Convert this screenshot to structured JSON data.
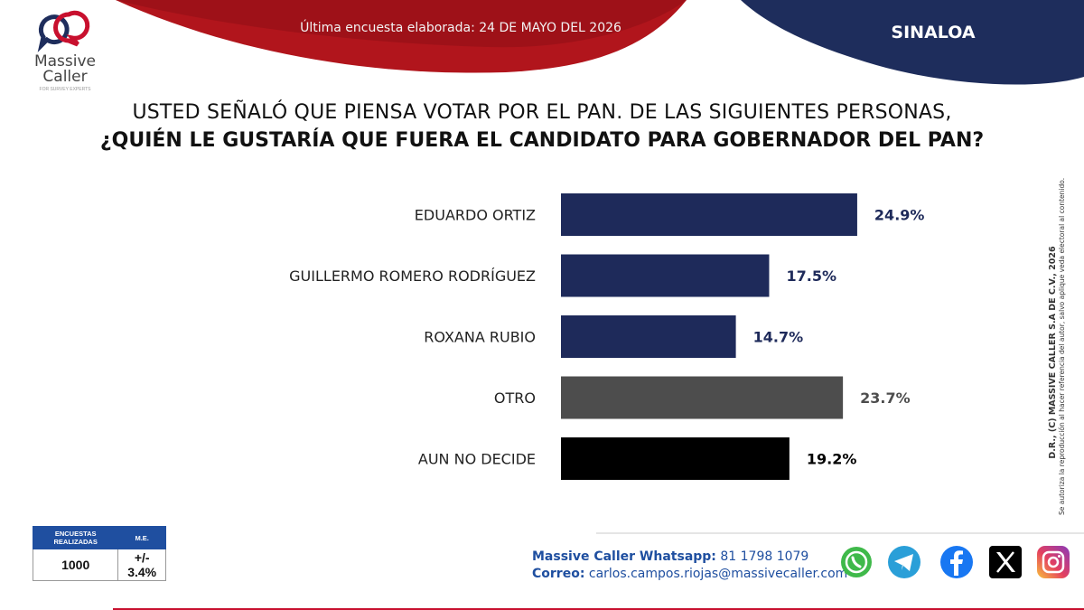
{
  "header": {
    "survey_date": "Última encuesta elaborada: 24 DE MAYO DEL 2026",
    "state": "SINALOA",
    "colors": {
      "red": "#b1151c",
      "navy": "#1e2d5c"
    }
  },
  "logo": {
    "name_line1": "Massive",
    "name_line2": "Caller",
    "tagline": "FOR SURVEY EXPERTS"
  },
  "question": {
    "line1": "USTED SEÑALÓ QUE PIENSA VOTAR POR EL PAN. DE LAS SIGUIENTES PERSONAS,",
    "line2": "¿QUIÉN LE GUSTARÍA QUE FUERA EL CANDIDATO PARA GOBERNADOR DEL PAN?"
  },
  "chart_data": {
    "type": "bar",
    "orientation": "horizontal",
    "categories": [
      "EDUARDO ORTIZ",
      "GUILLERMO ROMERO RODRÍGUEZ",
      "ROXANA RUBIO",
      "OTRO",
      "AUN NO DECIDE"
    ],
    "values": [
      24.9,
      17.5,
      14.7,
      23.7,
      19.2
    ],
    "value_labels": [
      "24.9%",
      "17.5%",
      "14.7%",
      "23.7%",
      "19.2%"
    ],
    "bar_colors": [
      "#1e2a5a",
      "#1e2a5a",
      "#1e2a5a",
      "#4d4d4d",
      "#000000"
    ],
    "label_colors": [
      "#1e2a5a",
      "#1e2a5a",
      "#1e2a5a",
      "#4d4d4d",
      "#000000"
    ],
    "title": "",
    "xlabel": "",
    "ylabel": "",
    "xlim": [
      0,
      25
    ],
    "grid": false,
    "legend": "none"
  },
  "side_note": {
    "line1": "D.R., (C) MASSIVE CALLER S.A DE C.V., 2026",
    "line2": "Se autoriza la reproducción al hacer referencia del autor, salvo aplique veda electoral al contenido."
  },
  "sample": {
    "header_surveys": "ENCUESTAS REALIZADAS",
    "header_me": "M.E.",
    "surveys": "1000",
    "margin": "+/- 3.4%"
  },
  "contact": {
    "whatsapp_label": "Massive Caller Whatsapp:",
    "whatsapp_value": "81 1798 1079",
    "email_label": "Correo:",
    "email_value": "carlos.campos.riojas@massivecaller.com"
  },
  "social_icons": [
    "whatsapp-icon",
    "telegram-icon",
    "facebook-icon",
    "x-icon",
    "instagram-icon"
  ]
}
